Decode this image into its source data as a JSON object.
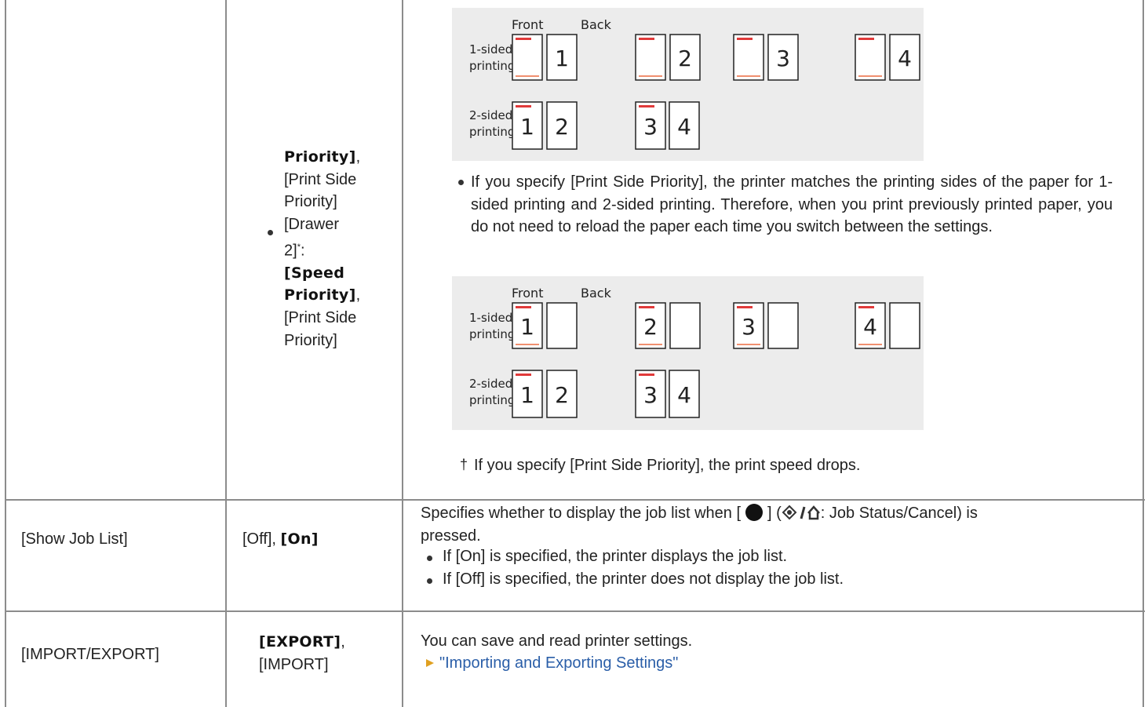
{
  "table": {
    "rows": [
      {
        "options": {
          "continued": "Priority]",
          "continued_sep": ",",
          "continued_other": "[Print Side Priority]",
          "items": [
            {
              "label": "[Drawer 2]",
              "mark": "*",
              "colon": ":",
              "default": "[Speed Priority]",
              "sep": ",",
              "other": "[Print Side Priority]"
            }
          ]
        },
        "description": {
          "diagram_before": {
            "header": [
              "Front",
              "Back"
            ],
            "rows": [
              {
                "label": [
                  "1-sided",
                  "printing"
                ],
                "pages": [
                  null,
                  "1",
                  null,
                  "2",
                  null,
                  "3",
                  null,
                  "4"
                ]
              },
              {
                "label": [
                  "2-sided",
                  "printing"
                ],
                "pages": [
                  "1",
                  "2",
                  "3",
                  "4"
                ]
              }
            ]
          },
          "bullet": "If you specify [Print Side Priority], the printer matches the printing sides of the paper for 1-sided printing and 2-sided printing. Therefore, when you print previously printed paper, you do not need to reload the paper each time you switch between the settings.",
          "diagram_after": {
            "header": [
              "Front",
              "Back"
            ],
            "rows": [
              {
                "label": [
                  "1-sided",
                  "printing"
                ],
                "pages": [
                  "1",
                  null,
                  "2",
                  null,
                  "3",
                  null,
                  "4",
                  null
                ]
              },
              {
                "label": [
                  "2-sided",
                  "printing"
                ],
                "pages": [
                  "1",
                  "2",
                  "3",
                  "4"
                ]
              }
            ]
          },
          "note_mark": "†",
          "note": "If you specify [Print Side Priority], the print speed drops."
        }
      },
      {
        "setting": "[Show Job List]",
        "options": {
          "other": "[Off]",
          "sep": ",",
          "default": "[On]"
        },
        "description": {
          "intro_before": "Specifies whether to display the job list when [",
          "intro_middle": "] (",
          "intro_after": ": Job Status/Cancel) is pressed.",
          "bullets": [
            "If [On] is specified, the printer displays the job list.",
            "If [Off] is specified, the printer does not display the job list."
          ]
        }
      },
      {
        "setting": "[IMPORT/EXPORT]",
        "options": {
          "default": "[EXPORT]",
          "sep": ",",
          "other": "[IMPORT]"
        },
        "description": {
          "text": "You can save and read printer settings.",
          "link": "\"Importing and Exporting Settings\""
        }
      }
    ]
  }
}
